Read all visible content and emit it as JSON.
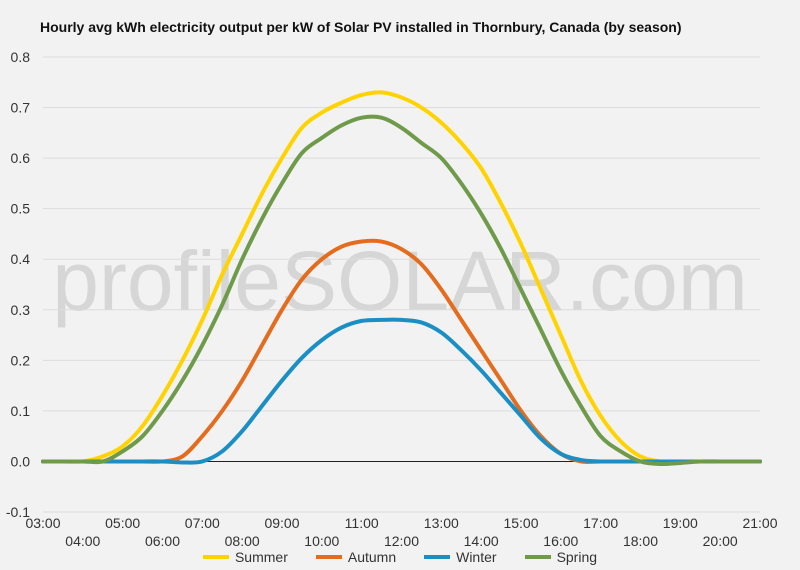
{
  "chart_data": {
    "type": "line",
    "title": "Hourly avg kWh electricity output per kW of Solar PV installed in Thornbury, Canada (by season)",
    "xlabel": "",
    "ylabel": "",
    "watermark": "profileSOLAR.com",
    "ylim": [
      -0.1,
      0.8
    ],
    "yticks": [
      "-0.1",
      "0.0",
      "0.1",
      "0.2",
      "0.3",
      "0.4",
      "0.5",
      "0.6",
      "0.7",
      "0.8"
    ],
    "x_tick_labels": [
      "03:00",
      "04:00",
      "05:00",
      "06:00",
      "07:00",
      "08:00",
      "09:00",
      "10:00",
      "11:00",
      "12:00",
      "13:00",
      "14:00",
      "15:00",
      "16:00",
      "17:00",
      "18:00",
      "19:00",
      "20:00",
      "21:00"
    ],
    "x": [
      3,
      3.5,
      4,
      4.5,
      5,
      5.5,
      6,
      6.5,
      7,
      7.5,
      8,
      8.5,
      9,
      9.5,
      10,
      10.5,
      11,
      11.5,
      12,
      12.5,
      13,
      13.5,
      14,
      14.5,
      15,
      15.5,
      16,
      16.5,
      17,
      17.5,
      18,
      18.5,
      19,
      19.5,
      20,
      20.5,
      21
    ],
    "grid": true,
    "legend_position": "bottom",
    "series": [
      {
        "name": "Summer",
        "color": "#ffd300",
        "values": [
          0.0,
          0.0,
          0.0,
          0.01,
          0.03,
          0.07,
          0.13,
          0.2,
          0.28,
          0.37,
          0.45,
          0.53,
          0.6,
          0.66,
          0.69,
          0.71,
          0.725,
          0.73,
          0.72,
          0.7,
          0.67,
          0.63,
          0.58,
          0.51,
          0.43,
          0.34,
          0.25,
          0.16,
          0.09,
          0.04,
          0.01,
          0.0,
          0.0,
          0.0,
          0.0,
          0.0,
          0.0
        ]
      },
      {
        "name": "Autumn",
        "color": "#e46c1e",
        "values": [
          0.0,
          0.0,
          0.0,
          0.0,
          0.0,
          0.0,
          0.0,
          0.01,
          0.05,
          0.1,
          0.16,
          0.23,
          0.3,
          0.36,
          0.4,
          0.425,
          0.435,
          0.435,
          0.42,
          0.39,
          0.34,
          0.28,
          0.22,
          0.16,
          0.1,
          0.05,
          0.015,
          0.0,
          0.0,
          0.0,
          0.0,
          0.0,
          0.0,
          0.0,
          0.0,
          0.0,
          0.0
        ]
      },
      {
        "name": "Winter",
        "color": "#1b8fc4",
        "values": [
          0.0,
          0.0,
          0.0,
          0.0,
          0.0,
          0.0,
          0.0,
          -0.002,
          0.0,
          0.02,
          0.06,
          0.11,
          0.16,
          0.205,
          0.24,
          0.265,
          0.278,
          0.28,
          0.28,
          0.275,
          0.255,
          0.22,
          0.18,
          0.135,
          0.09,
          0.045,
          0.015,
          0.003,
          0.0,
          0.0,
          0.0,
          0.0,
          0.0,
          0.0,
          0.0,
          0.0,
          0.0
        ]
      },
      {
        "name": "Spring",
        "color": "#6e9a4a",
        "values": [
          0.0,
          0.0,
          0.0,
          0.0,
          0.02,
          0.05,
          0.1,
          0.16,
          0.23,
          0.31,
          0.4,
          0.48,
          0.55,
          0.61,
          0.64,
          0.665,
          0.68,
          0.68,
          0.66,
          0.63,
          0.6,
          0.55,
          0.49,
          0.42,
          0.34,
          0.26,
          0.18,
          0.11,
          0.05,
          0.02,
          0.0,
          -0.005,
          -0.003,
          0.0,
          0.0,
          0.0,
          0.0
        ]
      }
    ]
  }
}
